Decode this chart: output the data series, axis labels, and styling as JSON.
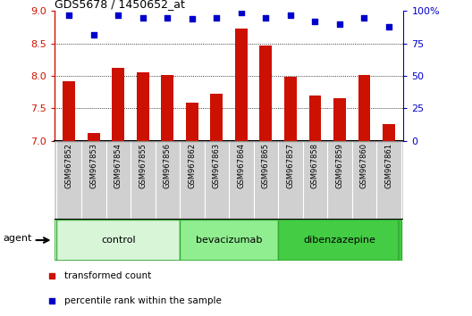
{
  "title": "GDS5678 / 1450652_at",
  "samples": [
    "GSM967852",
    "GSM967853",
    "GSM967854",
    "GSM967855",
    "GSM967856",
    "GSM967862",
    "GSM967863",
    "GSM967864",
    "GSM967865",
    "GSM967857",
    "GSM967858",
    "GSM967859",
    "GSM967860",
    "GSM967861"
  ],
  "transformed_count": [
    7.92,
    7.12,
    8.13,
    8.05,
    8.02,
    7.58,
    7.73,
    8.73,
    8.47,
    7.99,
    7.7,
    7.65,
    8.01,
    7.25
  ],
  "percentile_rank": [
    97,
    82,
    97,
    95,
    95,
    94,
    95,
    99,
    95,
    97,
    92,
    90,
    95,
    88
  ],
  "groups": [
    {
      "label": "control",
      "start": 0,
      "end": 5,
      "color": "#d8f5d8"
    },
    {
      "label": "bevacizumab",
      "start": 5,
      "end": 9,
      "color": "#90ee90"
    },
    {
      "label": "dibenzazepine",
      "start": 9,
      "end": 14,
      "color": "#44cc44"
    }
  ],
  "bar_color": "#cc1100",
  "dot_color": "#0000cc",
  "ylim_left": [
    7.0,
    9.0
  ],
  "ylim_right": [
    0,
    100
  ],
  "yticks_left": [
    7.0,
    7.5,
    8.0,
    8.5,
    9.0
  ],
  "yticks_right": [
    0,
    25,
    50,
    75,
    100
  ],
  "ylabel_right_ticks": [
    "0",
    "25",
    "50",
    "75",
    "100%"
  ],
  "grid_lines": [
    7.5,
    8.0,
    8.5
  ],
  "legend_items": [
    {
      "label": "transformed count",
      "color": "#cc1100"
    },
    {
      "label": "percentile rank within the sample",
      "color": "#0000cc"
    }
  ],
  "agent_label": "agent",
  "background_color": "#ffffff",
  "label_bg_color": "#d0d0d0",
  "label_border_color": "#888888"
}
